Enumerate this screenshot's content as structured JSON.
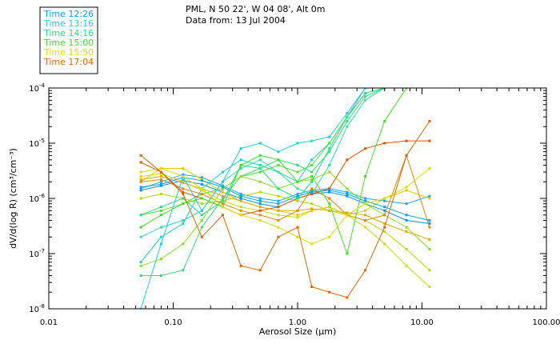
{
  "header": {
    "location": "PML, N 50 22', W 04 08', Alt 0m",
    "date_line": "Data from: 13 Jul 2004"
  },
  "chart_data": {
    "type": "line",
    "xscale": "log",
    "yscale": "log",
    "xlim": [
      0.01,
      100
    ],
    "ylim": [
      1e-08,
      0.0001
    ],
    "xlabel": "Aerosol Size (µm)",
    "ylabel": "dV/d(log R) (cm³/cm⁻³)",
    "x_ticks": [
      {
        "value": 0.01,
        "label": "0.01"
      },
      {
        "value": 0.1,
        "label": "0.10"
      },
      {
        "value": 1,
        "label": "1.00"
      },
      {
        "value": 10,
        "label": "10.00"
      },
      {
        "value": 100,
        "label": "100.00"
      }
    ],
    "y_ticks": [
      {
        "value": 1e-08,
        "base": "10",
        "exp": "-8"
      },
      {
        "value": 1e-07,
        "base": "10",
        "exp": "-7"
      },
      {
        "value": 1e-06,
        "base": "10",
        "exp": "-6"
      },
      {
        "value": 1e-05,
        "base": "10",
        "exp": "-5"
      },
      {
        "value": 0.0001,
        "base": "10",
        "exp": "-4"
      }
    ],
    "legend_position": "top-left",
    "x": [
      0.055,
      0.08,
      0.12,
      0.17,
      0.25,
      0.35,
      0.5,
      0.7,
      1.0,
      1.3,
      1.8,
      2.5,
      3.5,
      5.0,
      7.5,
      11.5
    ],
    "series": [
      {
        "name": "Time 12:26",
        "color": "#0aa0e8",
        "values": [
          1.6e-06,
          1.8e-06,
          2.4e-06,
          2.1e-06,
          1.6e-06,
          1.1e-06,
          9e-07,
          8e-07,
          1.1e-06,
          1.3e-06,
          1.4e-06,
          1.2e-06,
          9e-07,
          7e-07,
          5e-07,
          4e-07
        ]
      },
      {
        "name": "Time 13:16",
        "color": "#22ccdd",
        "values": [
          1e-08,
          1.5e-07,
          2.5e-06,
          6e-07,
          2e-06,
          8e-06,
          1e-05,
          7e-06,
          1e-05,
          1.1e-05,
          1.3e-05,
          3.5e-05,
          0.0001,
          0.0001,
          null,
          null
        ]
      },
      {
        "name": "Time 14:16",
        "color": "#22dd88",
        "values": [
          5e-07,
          7e-07,
          1e-06,
          5e-07,
          9e-07,
          4e-06,
          3.5e-06,
          1.5e-06,
          1e-06,
          2e-06,
          8e-06,
          3e-05,
          8e-05,
          0.0001,
          null,
          null
        ]
      },
      {
        "name": "Time 15:00",
        "color": "#44dd22",
        "values": [
          3e-07,
          5e-07,
          8e-07,
          1e-06,
          7e-07,
          4e-06,
          6e-06,
          5e-06,
          2e-06,
          2.5e-06,
          8e-07,
          1e-07,
          2.5e-06,
          2.5e-05,
          0.0001,
          null
        ]
      },
      {
        "name": "Time 15:50",
        "color": "#dddd00",
        "values": [
          3e-06,
          3.5e-06,
          2.5e-06,
          1.5e-06,
          7e-07,
          5e-07,
          4e-07,
          3e-07,
          2e-07,
          1.5e-07,
          2e-07,
          5e-07,
          8e-07,
          1e-06,
          1.6e-06,
          3.5e-06
        ]
      },
      {
        "name": "Time 17:04",
        "color": "#dd6600",
        "values": [
          6e-06,
          3e-06,
          1.2e-06,
          2e-07,
          5e-07,
          6e-08,
          5e-08,
          2e-07,
          3e-07,
          2.5e-08,
          2e-08,
          1.6e-08,
          5e-08,
          3e-07,
          6e-06,
          2.5e-05
        ]
      }
    ],
    "extra_traces": [
      {
        "color": "#0a90e0",
        "values": [
          1.4e-06,
          1.7e-06,
          2.1e-06,
          1.8e-06,
          1.3e-06,
          1e-06,
          8e-07,
          7e-07,
          1e-06,
          1.2e-06,
          1.3e-06,
          1.1e-06,
          8e-07,
          6e-07,
          4e-07,
          3.5e-07
        ]
      },
      {
        "color": "#1aa8f0",
        "values": [
          1.5e-06,
          2e-06,
          2.7e-06,
          2.4e-06,
          1.7e-06,
          1.2e-06,
          1e-06,
          9e-07,
          1.2e-06,
          1.4e-06,
          1.5e-06,
          1.3e-06,
          1e-06,
          9e-07,
          8e-07,
          1.1e-06
        ]
      },
      {
        "color": "#22cccc",
        "values": [
          7e-08,
          2e-07,
          3.5e-07,
          1.5e-06,
          3e-06,
          5e-06,
          4e-06,
          3e-06,
          2e-06,
          5e-06,
          1e-05,
          3e-05,
          0.0001,
          null,
          null,
          null
        ]
      },
      {
        "color": "#33ddaa",
        "values": [
          2e-07,
          3e-07,
          4e-07,
          6e-07,
          2e-06,
          3.5e-06,
          5e-06,
          3e-06,
          1.5e-06,
          1.2e-06,
          4e-06,
          2e-05,
          6e-05,
          0.0001,
          null,
          null
        ]
      },
      {
        "color": "#33dd77",
        "values": [
          4e-08,
          4e-08,
          5e-08,
          3e-07,
          1e-06,
          2.5e-06,
          3.5e-06,
          5e-06,
          4e-06,
          3e-06,
          7e-06,
          2.5e-05,
          7e-05,
          0.0001,
          null,
          null
        ]
      },
      {
        "color": "#55dd33",
        "values": [
          5e-07,
          6e-07,
          8e-07,
          1.2e-06,
          1.5e-06,
          2.5e-06,
          3e-06,
          4e-06,
          3e-06,
          4e-06,
          1e-05,
          3e-05,
          8e-05,
          0.0001,
          null,
          null
        ]
      },
      {
        "color": "#88dd22",
        "values": [
          6e-08,
          8e-08,
          1.5e-07,
          4e-07,
          1.5e-06,
          2.5e-06,
          2e-06,
          1.5e-06,
          2e-06,
          2.2e-06,
          3e-06,
          1.5e-06,
          8e-07,
          5e-07,
          3e-07,
          1.2e-07
        ]
      },
      {
        "color": "#aadd00",
        "values": [
          1e-06,
          1.2e-06,
          1e-06,
          8e-07,
          9e-07,
          1.1e-06,
          1.3e-06,
          1.1e-06,
          9e-07,
          8e-07,
          6e-07,
          5e-07,
          4e-07,
          2.5e-07,
          1.2e-07,
          5e-08
        ]
      },
      {
        "color": "#ccdd00",
        "values": [
          2.5e-06,
          2.8e-06,
          2e-06,
          1.4e-06,
          9e-07,
          7e-07,
          6e-07,
          5e-07,
          4.5e-07,
          6e-07,
          7e-07,
          5e-07,
          3e-07,
          1.5e-07,
          6e-08,
          2.5e-08
        ]
      },
      {
        "color": "#ddcc00",
        "values": [
          2e-06,
          3.5e-06,
          3.5e-06,
          2.2e-06,
          1.3e-06,
          9e-07,
          7e-07,
          6e-07,
          5e-07,
          6e-07,
          7e-07,
          5e-07,
          6e-07,
          1e-06,
          1.4e-06,
          1e-06
        ]
      },
      {
        "color": "#ddaa00",
        "values": [
          2.2e-06,
          2.5e-06,
          1.9e-06,
          1.5e-06,
          1.1e-06,
          9e-07,
          7e-07,
          6e-07,
          6e-07,
          6.5e-07,
          6e-07,
          5.5e-07,
          5e-07,
          3.5e-07,
          2.5e-07,
          1.8e-07
        ]
      },
      {
        "color": "#dd8800",
        "values": [
          2e-06,
          2.2e-06,
          1.5e-06,
          1.2e-06,
          8e-07,
          6e-07,
          5e-07,
          4e-07,
          6e-07,
          1.5e-06,
          1e-06,
          5e-07,
          4e-07,
          5e-07,
          6e-06,
          3e-07
        ]
      },
      {
        "color": "#dd5500",
        "values": [
          4.5e-06,
          3e-06,
          1.3e-06,
          1e-06,
          7e-07,
          5e-07,
          6e-07,
          7e-07,
          1e-06,
          1.2e-06,
          1.5e-06,
          5e-06,
          8e-06,
          1e-05,
          1.1e-05,
          1.1e-05
        ]
      }
    ]
  }
}
